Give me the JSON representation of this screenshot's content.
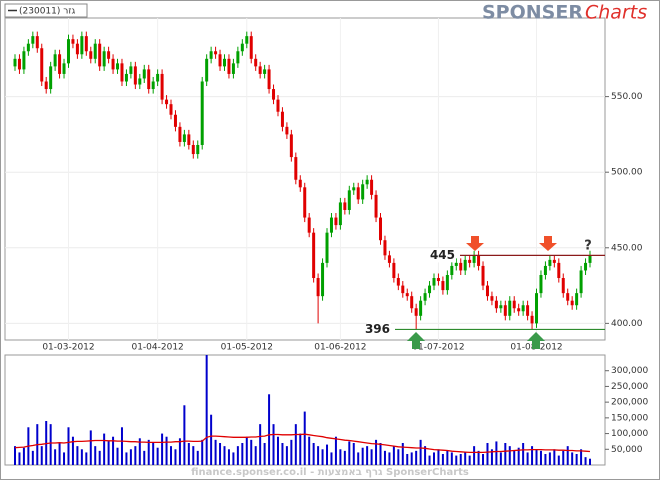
{
  "branding": {
    "logo_main": "SPONSER",
    "logo_accent": "Charts",
    "watermark": "finance.sponser.co.il - גרף באמצעות SponserCharts"
  },
  "chart_data": [
    {
      "type": "candlestick",
      "grid": true,
      "marker_text": "?",
      "categories": [
        null,
        null,
        null,
        null,
        null,
        null,
        null,
        null,
        null,
        null,
        null,
        null,
        "01-03-2012",
        null,
        null,
        null,
        null,
        null,
        null,
        null,
        null,
        null,
        null,
        null,
        null,
        null,
        null,
        null,
        null,
        null,
        null,
        null,
        "01-04-2012",
        null,
        null,
        null,
        null,
        null,
        null,
        null,
        null,
        null,
        null,
        null,
        null,
        null,
        null,
        null,
        null,
        null,
        null,
        null,
        "01-05-2012",
        null,
        null,
        null,
        null,
        null,
        null,
        null,
        null,
        null,
        null,
        null,
        null,
        null,
        null,
        null,
        null,
        null,
        null,
        null,
        null,
        "01-06-2012",
        null,
        null,
        null,
        null,
        null,
        null,
        null,
        null,
        null,
        null,
        null,
        null,
        null,
        null,
        null,
        null,
        null,
        null,
        null,
        null,
        null,
        "01-07-2012",
        null,
        null,
        null,
        null,
        null,
        null,
        null,
        null,
        null,
        null,
        null,
        null,
        null,
        null,
        null,
        null,
        null,
        null,
        null,
        null,
        null,
        "01-08-2012",
        null,
        null,
        null,
        null,
        null,
        null,
        null,
        null,
        null,
        null,
        null,
        null
      ],
      "ylim": [
        389,
        602
      ],
      "yticks": [
        {
          "value": 400,
          "label": "400.00"
        },
        {
          "value": 450,
          "label": "450.00"
        },
        {
          "value": 500,
          "label": "500.00"
        },
        {
          "value": 550,
          "label": "550.00"
        }
      ],
      "levels": [
        {
          "value": 445,
          "color": "#8b1a1a"
        },
        {
          "value": 396,
          "color": "#2e8b2e"
        }
      ],
      "series": [
        {
          "name": "(230011) גזר",
          "up_color": "#00a000",
          "down_color": "#e00000",
          "open": [
            570,
            575,
            568,
            580,
            585,
            590,
            582,
            560,
            555,
            570,
            578,
            565,
            572,
            588,
            585,
            578,
            590,
            580,
            575,
            585,
            570,
            580,
            575,
            568,
            572,
            560,
            565,
            570,
            558,
            562,
            568,
            555,
            560,
            565,
            548,
            545,
            538,
            530,
            520,
            525,
            518,
            512,
            518,
            560,
            575,
            580,
            578,
            570,
            575,
            565,
            572,
            580,
            585,
            590,
            575,
            570,
            565,
            568,
            555,
            548,
            540,
            530,
            525,
            510,
            495,
            490,
            470,
            460,
            430,
            418,
            440,
            460,
            470,
            465,
            480,
            475,
            488,
            490,
            482,
            492,
            495,
            485,
            470,
            455,
            445,
            440,
            430,
            425,
            420,
            418,
            410,
            405,
            415,
            420,
            425,
            430,
            428,
            422,
            432,
            438,
            440,
            435,
            442,
            440,
            445,
            438,
            425,
            418,
            415,
            410,
            412,
            405,
            415,
            410,
            408,
            412,
            405,
            400,
            420,
            432,
            438,
            442,
            440,
            430,
            420,
            415,
            412,
            420,
            435,
            440
          ],
          "high": [
            578,
            578,
            583,
            588,
            593,
            593,
            585,
            563,
            573,
            581,
            581,
            575,
            591,
            591,
            588,
            593,
            593,
            583,
            588,
            588,
            583,
            583,
            578,
            575,
            575,
            568,
            573,
            573,
            565,
            571,
            571,
            563,
            568,
            568,
            551,
            548,
            541,
            533,
            528,
            528,
            521,
            521,
            563,
            578,
            583,
            583,
            581,
            578,
            578,
            575,
            583,
            588,
            593,
            593,
            578,
            573,
            571,
            571,
            558,
            551,
            543,
            533,
            528,
            513,
            498,
            493,
            473,
            463,
            433,
            443,
            463,
            473,
            473,
            483,
            483,
            491,
            493,
            493,
            495,
            498,
            498,
            488,
            473,
            458,
            448,
            443,
            433,
            428,
            423,
            421,
            413,
            418,
            423,
            428,
            433,
            433,
            431,
            435,
            441,
            443,
            443,
            445,
            445,
            448,
            448,
            441,
            428,
            421,
            418,
            415,
            415,
            418,
            418,
            413,
            415,
            415,
            408,
            423,
            435,
            441,
            445,
            445,
            443,
            433,
            423,
            418,
            423,
            438,
            443,
            448
          ],
          "low": [
            567,
            565,
            565,
            577,
            582,
            579,
            557,
            552,
            552,
            567,
            562,
            562,
            569,
            582,
            575,
            575,
            577,
            572,
            572,
            567,
            567,
            572,
            565,
            565,
            557,
            557,
            562,
            555,
            555,
            559,
            552,
            552,
            557,
            545,
            542,
            535,
            527,
            517,
            517,
            515,
            509,
            509,
            515,
            557,
            572,
            575,
            567,
            567,
            562,
            562,
            569,
            577,
            582,
            572,
            567,
            562,
            562,
            552,
            545,
            537,
            527,
            522,
            507,
            492,
            487,
            467,
            457,
            427,
            400,
            415,
            437,
            457,
            462,
            462,
            472,
            472,
            485,
            479,
            479,
            489,
            482,
            467,
            452,
            442,
            437,
            427,
            422,
            417,
            415,
            407,
            396,
            402,
            412,
            417,
            422,
            425,
            419,
            419,
            429,
            435,
            432,
            432,
            437,
            437,
            435,
            422,
            415,
            412,
            407,
            407,
            402,
            402,
            407,
            405,
            405,
            402,
            396,
            397,
            417,
            429,
            435,
            437,
            427,
            417,
            412,
            409,
            409,
            417,
            432,
            437
          ],
          "close": [
            575,
            568,
            580,
            585,
            590,
            582,
            560,
            555,
            570,
            578,
            565,
            572,
            588,
            585,
            578,
            590,
            580,
            575,
            585,
            570,
            580,
            575,
            568,
            572,
            560,
            565,
            570,
            558,
            562,
            568,
            555,
            560,
            565,
            548,
            545,
            538,
            530,
            520,
            525,
            518,
            512,
            518,
            560,
            575,
            580,
            578,
            570,
            575,
            565,
            572,
            580,
            585,
            590,
            575,
            570,
            565,
            568,
            555,
            548,
            540,
            530,
            525,
            510,
            495,
            490,
            470,
            460,
            430,
            418,
            440,
            460,
            470,
            465,
            480,
            475,
            488,
            490,
            482,
            492,
            495,
            485,
            470,
            455,
            445,
            440,
            430,
            425,
            420,
            418,
            410,
            405,
            415,
            420,
            425,
            430,
            428,
            422,
            432,
            438,
            440,
            435,
            442,
            440,
            445,
            438,
            425,
            418,
            415,
            410,
            412,
            405,
            415,
            410,
            408,
            412,
            405,
            400,
            420,
            432,
            438,
            442,
            440,
            430,
            420,
            415,
            412,
            420,
            435,
            440,
            445
          ]
        }
      ]
    },
    {
      "type": "bar",
      "ylim": [
        0,
        350000
      ],
      "yticks": [
        {
          "value": 50000,
          "label": "50,000"
        },
        {
          "value": 100000,
          "label": "100,000"
        },
        {
          "value": 150000,
          "label": "150,000"
        },
        {
          "value": 200000,
          "label": "200,000"
        },
        {
          "value": 250000,
          "label": "250,000"
        },
        {
          "value": 300000,
          "label": "300,000"
        }
      ],
      "series": [
        {
          "type": "bar",
          "color": "#0000cc",
          "values": [
            60000,
            40000,
            55000,
            120000,
            45000,
            130000,
            60000,
            140000,
            130000,
            50000,
            70000,
            40000,
            120000,
            90000,
            60000,
            50000,
            40000,
            110000,
            60000,
            45000,
            100000,
            75000,
            90000,
            55000,
            120000,
            40000,
            50000,
            60000,
            85000,
            45000,
            80000,
            70000,
            55000,
            100000,
            90000,
            60000,
            50000,
            85000,
            190000,
            70000,
            60000,
            45000,
            80000,
            350000,
            160000,
            80000,
            70000,
            60000,
            50000,
            40000,
            60000,
            70000,
            90000,
            80000,
            60000,
            130000,
            70000,
            225000,
            130000,
            90000,
            70000,
            60000,
            80000,
            130000,
            100000,
            170000,
            90000,
            70000,
            60000,
            50000,
            65000,
            40000,
            90000,
            50000,
            45000,
            75000,
            70000,
            40000,
            55000,
            60000,
            50000,
            80000,
            70000,
            45000,
            40000,
            60000,
            50000,
            70000,
            35000,
            40000,
            45000,
            80000,
            60000,
            30000,
            40000,
            50000,
            35000,
            45000,
            40000,
            30000,
            35000,
            40000,
            30000,
            60000,
            45000,
            35000,
            70000,
            50000,
            75000,
            40000,
            70000,
            60000,
            45000,
            55000,
            70000,
            40000,
            60000,
            50000,
            45000,
            35000,
            40000,
            50000,
            30000,
            45000,
            60000,
            40000,
            35000,
            50000,
            25000,
            20000
          ]
        },
        {
          "type": "line",
          "color": "#e00000",
          "values": [
            55000,
            56000,
            57000,
            60000,
            62000,
            65000,
            66000,
            68000,
            70000,
            70000,
            71000,
            70000,
            72000,
            74000,
            75000,
            75000,
            76000,
            77000,
            78000,
            78000,
            78000,
            77000,
            77000,
            76000,
            76000,
            75000,
            74000,
            74000,
            73000,
            73000,
            72000,
            72000,
            72000,
            72000,
            73000,
            73000,
            74000,
            74000,
            76000,
            76000,
            75000,
            75000,
            76000,
            88000,
            92000,
            92000,
            91000,
            90000,
            89000,
            88000,
            88000,
            88000,
            88000,
            89000,
            89000,
            91000,
            92000,
            96000,
            97000,
            97000,
            96000,
            96000,
            96000,
            97000,
            97000,
            98000,
            96000,
            94000,
            92000,
            90000,
            87000,
            85000,
            83000,
            81000,
            79000,
            78000,
            76000,
            74000,
            72000,
            70000,
            68000,
            67000,
            66000,
            64000,
            62000,
            60000,
            58000,
            57000,
            56000,
            55000,
            54000,
            54000,
            53000,
            51000,
            49000,
            48000,
            47000,
            46000,
            44000,
            43000,
            42000,
            41000,
            40000,
            40000,
            40000,
            40000,
            41000,
            42000,
            43000,
            43000,
            44000,
            45000,
            46000,
            47000,
            48000,
            48000,
            49000,
            49000,
            49000,
            48000,
            48000,
            48000,
            47000,
            47000,
            46000,
            46000,
            45000,
            45000,
            44000,
            43000
          ]
        }
      ]
    }
  ]
}
